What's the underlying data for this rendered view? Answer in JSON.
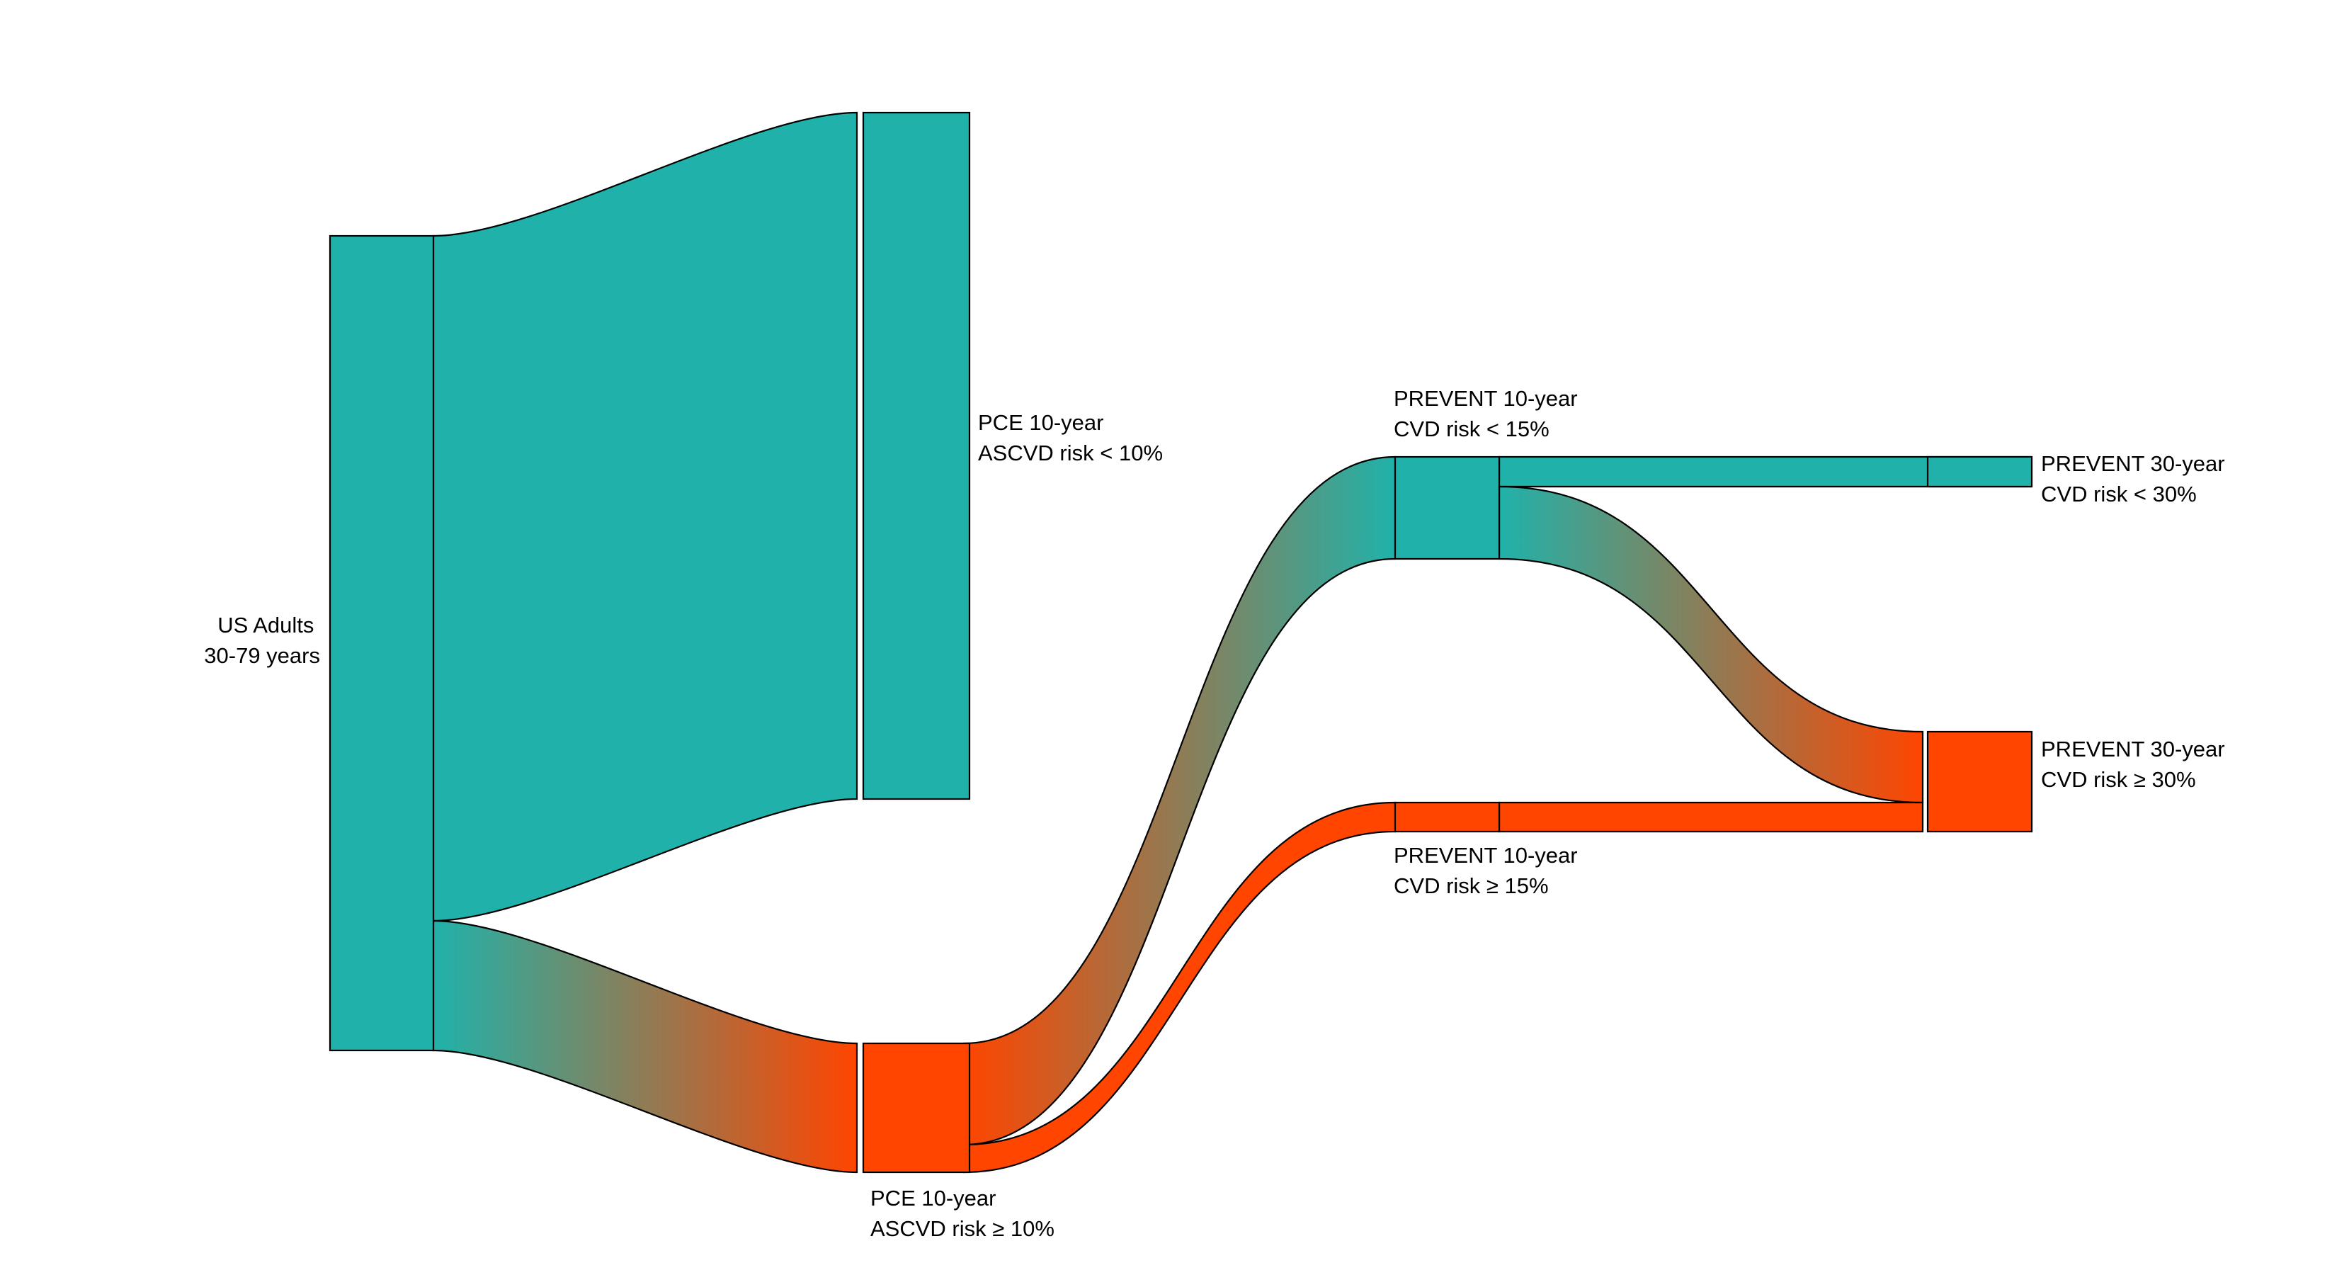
{
  "colors": {
    "low_risk": "#20B2AA",
    "high_risk": "#FF4500",
    "outline": "#000000",
    "background": "#ffffff"
  },
  "nodes": [
    {
      "id": "us-adults",
      "label_lines": [
        "US Adults",
        "30-79 years"
      ],
      "color": "low_risk",
      "label_side": "left"
    },
    {
      "id": "pce-low",
      "label_lines": [
        "PCE 10-year",
        "ASCVD risk < 10%"
      ],
      "color": "low_risk",
      "label_side": "right"
    },
    {
      "id": "pce-high",
      "label_lines": [
        "PCE 10-year",
        "ASCVD risk ≥ 10%"
      ],
      "color": "high_risk",
      "label_side": "below"
    },
    {
      "id": "prevent10-low",
      "label_lines": [
        "PREVENT 10-year",
        "CVD risk < 15%"
      ],
      "color": "low_risk",
      "label_side": "above"
    },
    {
      "id": "prevent10-high",
      "label_lines": [
        "PREVENT 10-year",
        "CVD risk ≥ 15%"
      ],
      "color": "high_risk",
      "label_side": "below"
    },
    {
      "id": "prevent30-low",
      "label_lines": [
        "PREVENT 30-year",
        "CVD risk < 30%"
      ],
      "color": "low_risk",
      "label_side": "right"
    },
    {
      "id": "prevent30-high",
      "label_lines": [
        "PREVENT 30-year",
        "CVD risk ≥ 30%"
      ],
      "color": "high_risk",
      "label_side": "right"
    }
  ],
  "flows": [
    {
      "from": "us-adults",
      "to": "pce-low",
      "value": 84
    },
    {
      "from": "us-adults",
      "to": "pce-high",
      "value": 16
    },
    {
      "from": "pce-high",
      "to": "prevent10-low",
      "value": 12.5
    },
    {
      "from": "pce-high",
      "to": "prevent10-high",
      "value": 3.5
    },
    {
      "from": "prevent10-low",
      "to": "prevent30-low",
      "value": 3.5
    },
    {
      "from": "prevent10-low",
      "to": "prevent30-high",
      "value": 9
    },
    {
      "from": "prevent10-high",
      "to": "prevent30-high",
      "value": 3.5
    }
  ]
}
